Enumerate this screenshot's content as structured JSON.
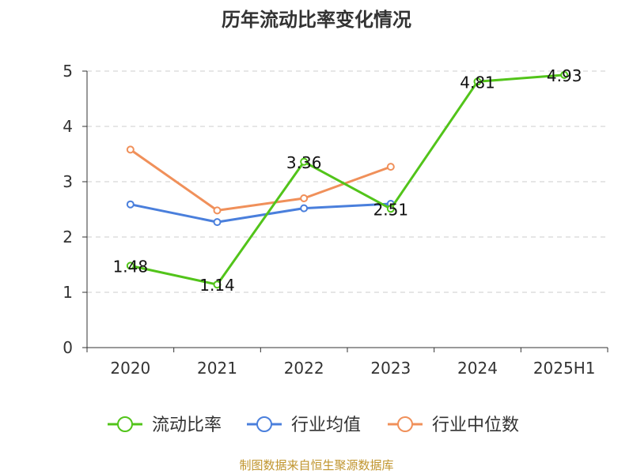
{
  "chart_data": {
    "type": "line",
    "title": "历年流动比率变化情况",
    "categories": [
      "2020",
      "2021",
      "2022",
      "2023",
      "2024",
      "2025H1"
    ],
    "ylim": [
      0,
      5
    ],
    "yticks": [
      0,
      1,
      2,
      3,
      4,
      5
    ],
    "grid": true,
    "legend_position": "bottom",
    "series": [
      {
        "name": "流动比率",
        "color": "#52c41a",
        "values": [
          1.48,
          1.14,
          3.36,
          2.51,
          4.81,
          4.93
        ],
        "show_labels": true,
        "labels": [
          "1.48",
          "1.14",
          "3.36",
          "2.51",
          "4.81",
          "4.93"
        ]
      },
      {
        "name": "行业均值",
        "color": "#4a7fdc",
        "values": [
          2.59,
          2.27,
          2.52,
          2.6,
          null,
          null
        ],
        "show_labels": false
      },
      {
        "name": "行业中位数",
        "color": "#f0905a",
        "values": [
          3.58,
          2.48,
          2.7,
          3.27,
          null,
          null
        ],
        "show_labels": false
      }
    ]
  },
  "source_note": "制图数据来自恒生聚源数据库"
}
